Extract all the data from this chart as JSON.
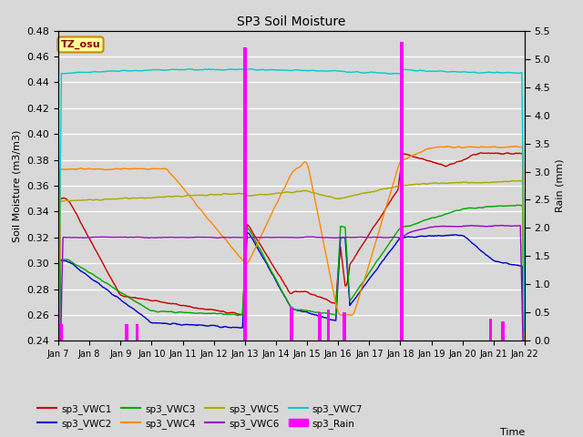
{
  "title": "SP3 Soil Moisture",
  "xlabel": "Time",
  "ylabel_left": "Soil Moisture (m3/m3)",
  "ylabel_right": "Rain (mm)",
  "ylim_left": [
    0.24,
    0.48
  ],
  "ylim_right": [
    0.0,
    5.5
  ],
  "background_color": "#d8d8d8",
  "plot_bg_color": "#d8d8d8",
  "grid_color": "white",
  "annotation_text": "TZ_osu",
  "annotation_color": "#8B0000",
  "annotation_bg": "#ffff99",
  "annotation_border": "#cc8800",
  "colors": {
    "VWC1": "#cc0000",
    "VWC2": "#0000cc",
    "VWC3": "#00aa00",
    "VWC4": "#ff8800",
    "VWC5": "#aaaa00",
    "VWC6": "#9900cc",
    "VWC7": "#00cccc",
    "Rain": "#ff00ff"
  },
  "legend_labels": [
    "sp3_VWC1",
    "sp3_VWC2",
    "sp3_VWC3",
    "sp3_VWC4",
    "sp3_VWC5",
    "sp3_VWC6",
    "sp3_VWC7",
    "sp3_Rain"
  ],
  "x_tick_labels": [
    "Jan 7",
    "Jan 8",
    "Jan 9",
    "Jan 10",
    "Jan 11",
    "Jan 12",
    "Jan 13",
    "Jan 14",
    "Jan 15",
    "Jan 16",
    "Jan 17",
    "Jan 18",
    "Jan 19",
    "Jan 20",
    "Jan 21",
    "Jan 22"
  ],
  "n_points": 1500
}
